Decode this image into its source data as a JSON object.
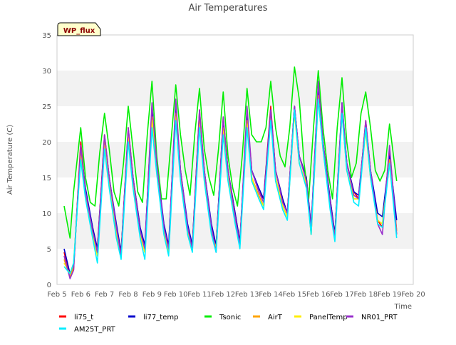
{
  "chart_data": {
    "type": "line",
    "title": "Air Temperatures",
    "xlabel": "Time",
    "ylabel": "Air Temperature (C)",
    "badge": "WP_flux",
    "x_ticks": [
      "Feb 5",
      "Feb 6",
      "Feb 7",
      "Feb 8",
      "Feb 9",
      "Feb 10",
      "Feb 11",
      "Feb 12",
      "Feb 13",
      "Feb 14",
      "Feb 15",
      "Feb 16",
      "Feb 17",
      "Feb 18",
      "Feb 19",
      "Feb 20"
    ],
    "y_ticks": [
      0,
      5,
      10,
      15,
      20,
      25,
      30,
      35
    ],
    "xlim": [
      5,
      20
    ],
    "ylim": [
      0,
      35
    ],
    "x_unit": "day of February",
    "grid": "horizontal bands",
    "legend_position": "bottom",
    "colors": {
      "li75_t": "#ff0000",
      "li77_temp": "#0000cc",
      "Tsonic": "#00ee00",
      "AirT": "#ffa500",
      "PanelTemp": "#ffee00",
      "NR01_PRT": "#9932cc",
      "AM25T_PRT": "#00eeff"
    },
    "series": [
      {
        "name": "li75_t",
        "x": [
          5.3,
          5.55,
          5.7,
          6.0,
          6.2,
          6.5,
          6.7,
          7.0,
          7.2,
          7.5,
          7.7,
          8.0,
          8.2,
          8.5,
          8.7,
          9.0,
          9.2,
          9.5,
          9.7,
          10.0,
          10.2,
          10.5,
          10.7,
          11.0,
          11.2,
          11.5,
          11.7,
          12.0,
          12.2,
          12.5,
          12.7,
          13.0,
          13.2,
          13.5,
          13.7,
          14.0,
          14.2,
          14.5,
          14.7,
          15.0,
          15.2,
          15.5,
          15.7,
          16.0,
          16.2,
          16.5,
          16.7,
          17.0,
          17.2,
          17.5,
          17.7,
          18.0,
          18.2,
          18.5,
          18.7,
          19.0,
          19.3
        ],
        "y": [
          4.5,
          1.0,
          2.0,
          20.0,
          13.0,
          8.0,
          5.0,
          21.0,
          15.0,
          8.0,
          4.5,
          22.0,
          15.0,
          8.0,
          5.0,
          25.0,
          17.0,
          8.0,
          5.0,
          25.5,
          16.0,
          8.0,
          5.5,
          24.5,
          16.0,
          8.0,
          5.0,
          23.5,
          16.0,
          10.0,
          6.0,
          24.0,
          16.0,
          13.0,
          12.0,
          25.0,
          16.0,
          12.0,
          10.0,
          25.0,
          18.0,
          15.0,
          8.0,
          27.0,
          20.0,
          12.0,
          7.0,
          25.0,
          17.0,
          13.0,
          12.0,
          23.0,
          16.0,
          9.0,
          8.0,
          19.0,
          7.5
        ]
      },
      {
        "name": "li77_temp",
        "x": [
          5.3,
          5.55,
          5.7,
          6.0,
          6.2,
          6.5,
          6.7,
          7.0,
          7.2,
          7.5,
          7.7,
          8.0,
          8.2,
          8.5,
          8.7,
          9.0,
          9.2,
          9.5,
          9.7,
          10.0,
          10.2,
          10.5,
          10.7,
          11.0,
          11.2,
          11.5,
          11.7,
          12.0,
          12.2,
          12.5,
          12.7,
          13.0,
          13.2,
          13.5,
          13.7,
          14.0,
          14.2,
          14.5,
          14.7,
          15.0,
          15.2,
          15.5,
          15.7,
          16.0,
          16.2,
          16.5,
          16.7,
          17.0,
          17.2,
          17.5,
          17.7,
          18.0,
          18.2,
          18.5,
          18.7,
          19.0,
          19.3
        ],
        "y": [
          5.0,
          1.5,
          2.5,
          19.0,
          13.5,
          8.0,
          5.0,
          20.5,
          15.0,
          8.5,
          4.5,
          21.5,
          15.0,
          8.0,
          5.5,
          24.5,
          17.0,
          8.5,
          5.5,
          25.0,
          16.0,
          8.5,
          5.5,
          24.0,
          16.0,
          8.5,
          5.5,
          23.0,
          16.0,
          10.0,
          6.0,
          23.5,
          16.0,
          13.5,
          12.0,
          24.5,
          16.0,
          12.0,
          10.0,
          25.0,
          18.0,
          15.0,
          8.0,
          28.0,
          20.0,
          12.0,
          7.0,
          25.5,
          17.0,
          13.0,
          12.5,
          22.5,
          16.0,
          10.0,
          9.5,
          18.0,
          9.0
        ]
      },
      {
        "name": "Tsonic",
        "x": [
          5.3,
          5.55,
          5.7,
          6.0,
          6.2,
          6.4,
          6.6,
          6.8,
          7.0,
          7.2,
          7.4,
          7.6,
          7.8,
          8.0,
          8.2,
          8.4,
          8.6,
          8.8,
          9.0,
          9.2,
          9.4,
          9.6,
          9.8,
          10.0,
          10.2,
          10.4,
          10.6,
          10.8,
          11.0,
          11.2,
          11.4,
          11.6,
          11.8,
          12.0,
          12.2,
          12.4,
          12.6,
          12.8,
          13.0,
          13.2,
          13.4,
          13.6,
          13.8,
          14.0,
          14.2,
          14.4,
          14.6,
          14.8,
          15.0,
          15.2,
          15.4,
          15.6,
          15.8,
          16.0,
          16.2,
          16.4,
          16.6,
          16.8,
          17.0,
          17.2,
          17.4,
          17.6,
          17.8,
          18.0,
          18.2,
          18.4,
          18.6,
          18.8,
          19.0,
          19.3
        ],
        "y": [
          11.0,
          6.5,
          13.0,
          22.0,
          15.0,
          11.5,
          11.0,
          18.5,
          24.0,
          19.0,
          13.0,
          11.0,
          17.0,
          25.0,
          19.0,
          13.0,
          11.5,
          21.0,
          28.5,
          18.0,
          12.0,
          12.0,
          20.0,
          28.0,
          21.0,
          16.0,
          12.5,
          21.0,
          27.5,
          19.0,
          15.0,
          12.5,
          19.0,
          27.0,
          18.0,
          13.5,
          11.0,
          18.0,
          27.5,
          21.0,
          20.0,
          20.0,
          22.0,
          28.5,
          22.0,
          18.0,
          16.5,
          22.0,
          30.5,
          26.0,
          17.0,
          12.0,
          22.0,
          30.0,
          22.0,
          16.0,
          12.0,
          22.0,
          29.0,
          20.0,
          15.0,
          17.0,
          24.0,
          27.0,
          22.0,
          16.0,
          14.5,
          16.0,
          22.5,
          14.5
        ]
      },
      {
        "name": "AirT",
        "x": [
          5.3,
          5.55,
          5.7,
          6.0,
          6.2,
          6.5,
          6.7,
          7.0,
          7.2,
          7.5,
          7.7,
          8.0,
          8.2,
          8.5,
          8.7,
          9.0,
          9.2,
          9.5,
          9.7,
          10.0,
          10.2,
          10.5,
          10.7,
          11.0,
          11.2,
          11.5,
          11.7,
          12.0,
          12.2,
          12.5,
          12.7,
          13.0,
          13.2,
          13.5,
          13.7,
          14.0,
          14.2,
          14.5,
          14.7,
          15.0,
          15.2,
          15.5,
          15.7,
          16.0,
          16.2,
          16.5,
          16.7,
          17.0,
          17.2,
          17.5,
          17.7,
          18.0,
          18.2,
          18.5,
          18.7,
          19.0,
          19.3
        ],
        "y": [
          3.5,
          1.0,
          2.5,
          18.5,
          12.5,
          7.0,
          4.5,
          20.0,
          14.0,
          7.0,
          4.0,
          21.0,
          14.0,
          7.0,
          4.5,
          23.5,
          16.0,
          7.5,
          4.5,
          24.0,
          15.0,
          7.5,
          5.0,
          23.0,
          15.0,
          7.5,
          5.0,
          22.0,
          15.0,
          9.0,
          5.5,
          23.0,
          15.0,
          12.5,
          11.0,
          24.0,
          15.0,
          11.0,
          9.5,
          24.5,
          17.0,
          14.0,
          7.0,
          26.5,
          19.0,
          11.0,
          6.5,
          24.5,
          16.0,
          12.0,
          12.0,
          22.0,
          15.0,
          9.0,
          8.5,
          17.5,
          7.0
        ]
      },
      {
        "name": "PanelTemp",
        "x": [
          5.3,
          5.55,
          5.7,
          6.0,
          6.2,
          6.5,
          6.7,
          7.0,
          7.2,
          7.5,
          7.7,
          8.0,
          8.2,
          8.5,
          8.7,
          9.0,
          9.2,
          9.5,
          9.7,
          10.0,
          10.2,
          10.5,
          10.7,
          11.0,
          11.2,
          11.5,
          11.7,
          12.0,
          12.2,
          12.5,
          12.7,
          13.0,
          13.2,
          13.5,
          13.7,
          14.0,
          14.2,
          14.5,
          14.7,
          15.0,
          15.2,
          15.5,
          15.7,
          16.0,
          16.2,
          16.5,
          16.7,
          17.0,
          17.2,
          17.5,
          17.7,
          18.0,
          18.2,
          18.5,
          18.7,
          19.0,
          19.3
        ],
        "y": [
          3.0,
          1.5,
          3.0,
          18.0,
          12.5,
          7.0,
          4.0,
          19.5,
          14.0,
          7.0,
          4.0,
          20.5,
          14.0,
          7.0,
          4.5,
          23.0,
          16.0,
          7.5,
          4.5,
          23.5,
          15.0,
          7.5,
          5.0,
          22.5,
          15.0,
          7.5,
          5.0,
          21.5,
          15.0,
          9.0,
          5.5,
          22.5,
          15.0,
          12.0,
          11.0,
          23.5,
          15.0,
          11.0,
          9.5,
          24.0,
          17.0,
          14.0,
          7.0,
          26.0,
          19.0,
          11.0,
          6.5,
          24.0,
          16.0,
          12.0,
          12.0,
          21.5,
          15.0,
          9.0,
          8.5,
          17.0,
          7.5
        ]
      },
      {
        "name": "NR01_PRT",
        "x": [
          5.3,
          5.55,
          5.7,
          6.0,
          6.2,
          6.5,
          6.7,
          7.0,
          7.2,
          7.5,
          7.7,
          8.0,
          8.2,
          8.5,
          8.7,
          9.0,
          9.2,
          9.5,
          9.7,
          10.0,
          10.2,
          10.5,
          10.7,
          11.0,
          11.2,
          11.5,
          11.7,
          12.0,
          12.2,
          12.5,
          12.7,
          13.0,
          13.2,
          13.5,
          13.7,
          14.0,
          14.2,
          14.5,
          14.7,
          15.0,
          15.2,
          15.5,
          15.7,
          16.0,
          16.2,
          16.5,
          16.7,
          17.0,
          17.2,
          17.5,
          17.7,
          18.0,
          18.2,
          18.5,
          18.7,
          19.0,
          19.3
        ],
        "y": [
          4.0,
          0.8,
          2.0,
          19.5,
          13.0,
          7.5,
          4.5,
          21.0,
          15.0,
          8.0,
          4.0,
          22.0,
          15.0,
          7.5,
          5.0,
          25.5,
          17.0,
          8.0,
          5.0,
          26.0,
          16.0,
          8.0,
          5.0,
          24.5,
          16.0,
          8.0,
          4.5,
          23.5,
          16.0,
          9.5,
          5.5,
          25.0,
          16.0,
          13.0,
          11.5,
          24.5,
          16.0,
          11.5,
          10.0,
          25.0,
          18.0,
          14.5,
          7.5,
          28.5,
          20.0,
          11.5,
          6.5,
          25.5,
          17.0,
          12.5,
          12.0,
          23.0,
          16.0,
          8.5,
          7.0,
          19.5,
          7.0
        ]
      },
      {
        "name": "AM25T_PRT",
        "x": [
          5.3,
          5.55,
          5.7,
          6.0,
          6.2,
          6.5,
          6.7,
          7.0,
          7.2,
          7.5,
          7.7,
          8.0,
          8.2,
          8.5,
          8.7,
          9.0,
          9.2,
          9.5,
          9.7,
          10.0,
          10.2,
          10.5,
          10.7,
          11.0,
          11.2,
          11.5,
          11.7,
          12.0,
          12.2,
          12.5,
          12.7,
          13.0,
          13.2,
          13.5,
          13.7,
          14.0,
          14.2,
          14.5,
          14.7,
          15.0,
          15.2,
          15.5,
          15.7,
          16.0,
          16.2,
          16.5,
          16.7,
          17.0,
          17.2,
          17.5,
          17.7,
          18.0,
          18.2,
          18.5,
          18.7,
          19.0,
          19.3
        ],
        "y": [
          2.5,
          1.5,
          3.0,
          17.5,
          12.0,
          6.5,
          3.0,
          19.0,
          13.5,
          6.5,
          3.5,
          20.0,
          13.5,
          6.5,
          3.5,
          22.0,
          15.5,
          7.0,
          4.0,
          23.0,
          14.5,
          7.0,
          4.5,
          22.0,
          14.5,
          7.0,
          4.5,
          21.0,
          14.5,
          8.5,
          5.0,
          22.0,
          14.5,
          12.0,
          10.5,
          23.0,
          14.5,
          10.5,
          9.0,
          24.5,
          17.0,
          13.5,
          7.0,
          26.0,
          19.0,
          10.5,
          6.0,
          24.0,
          16.0,
          11.5,
          11.0,
          22.0,
          15.0,
          8.5,
          8.0,
          17.0,
          6.5
        ]
      }
    ]
  }
}
